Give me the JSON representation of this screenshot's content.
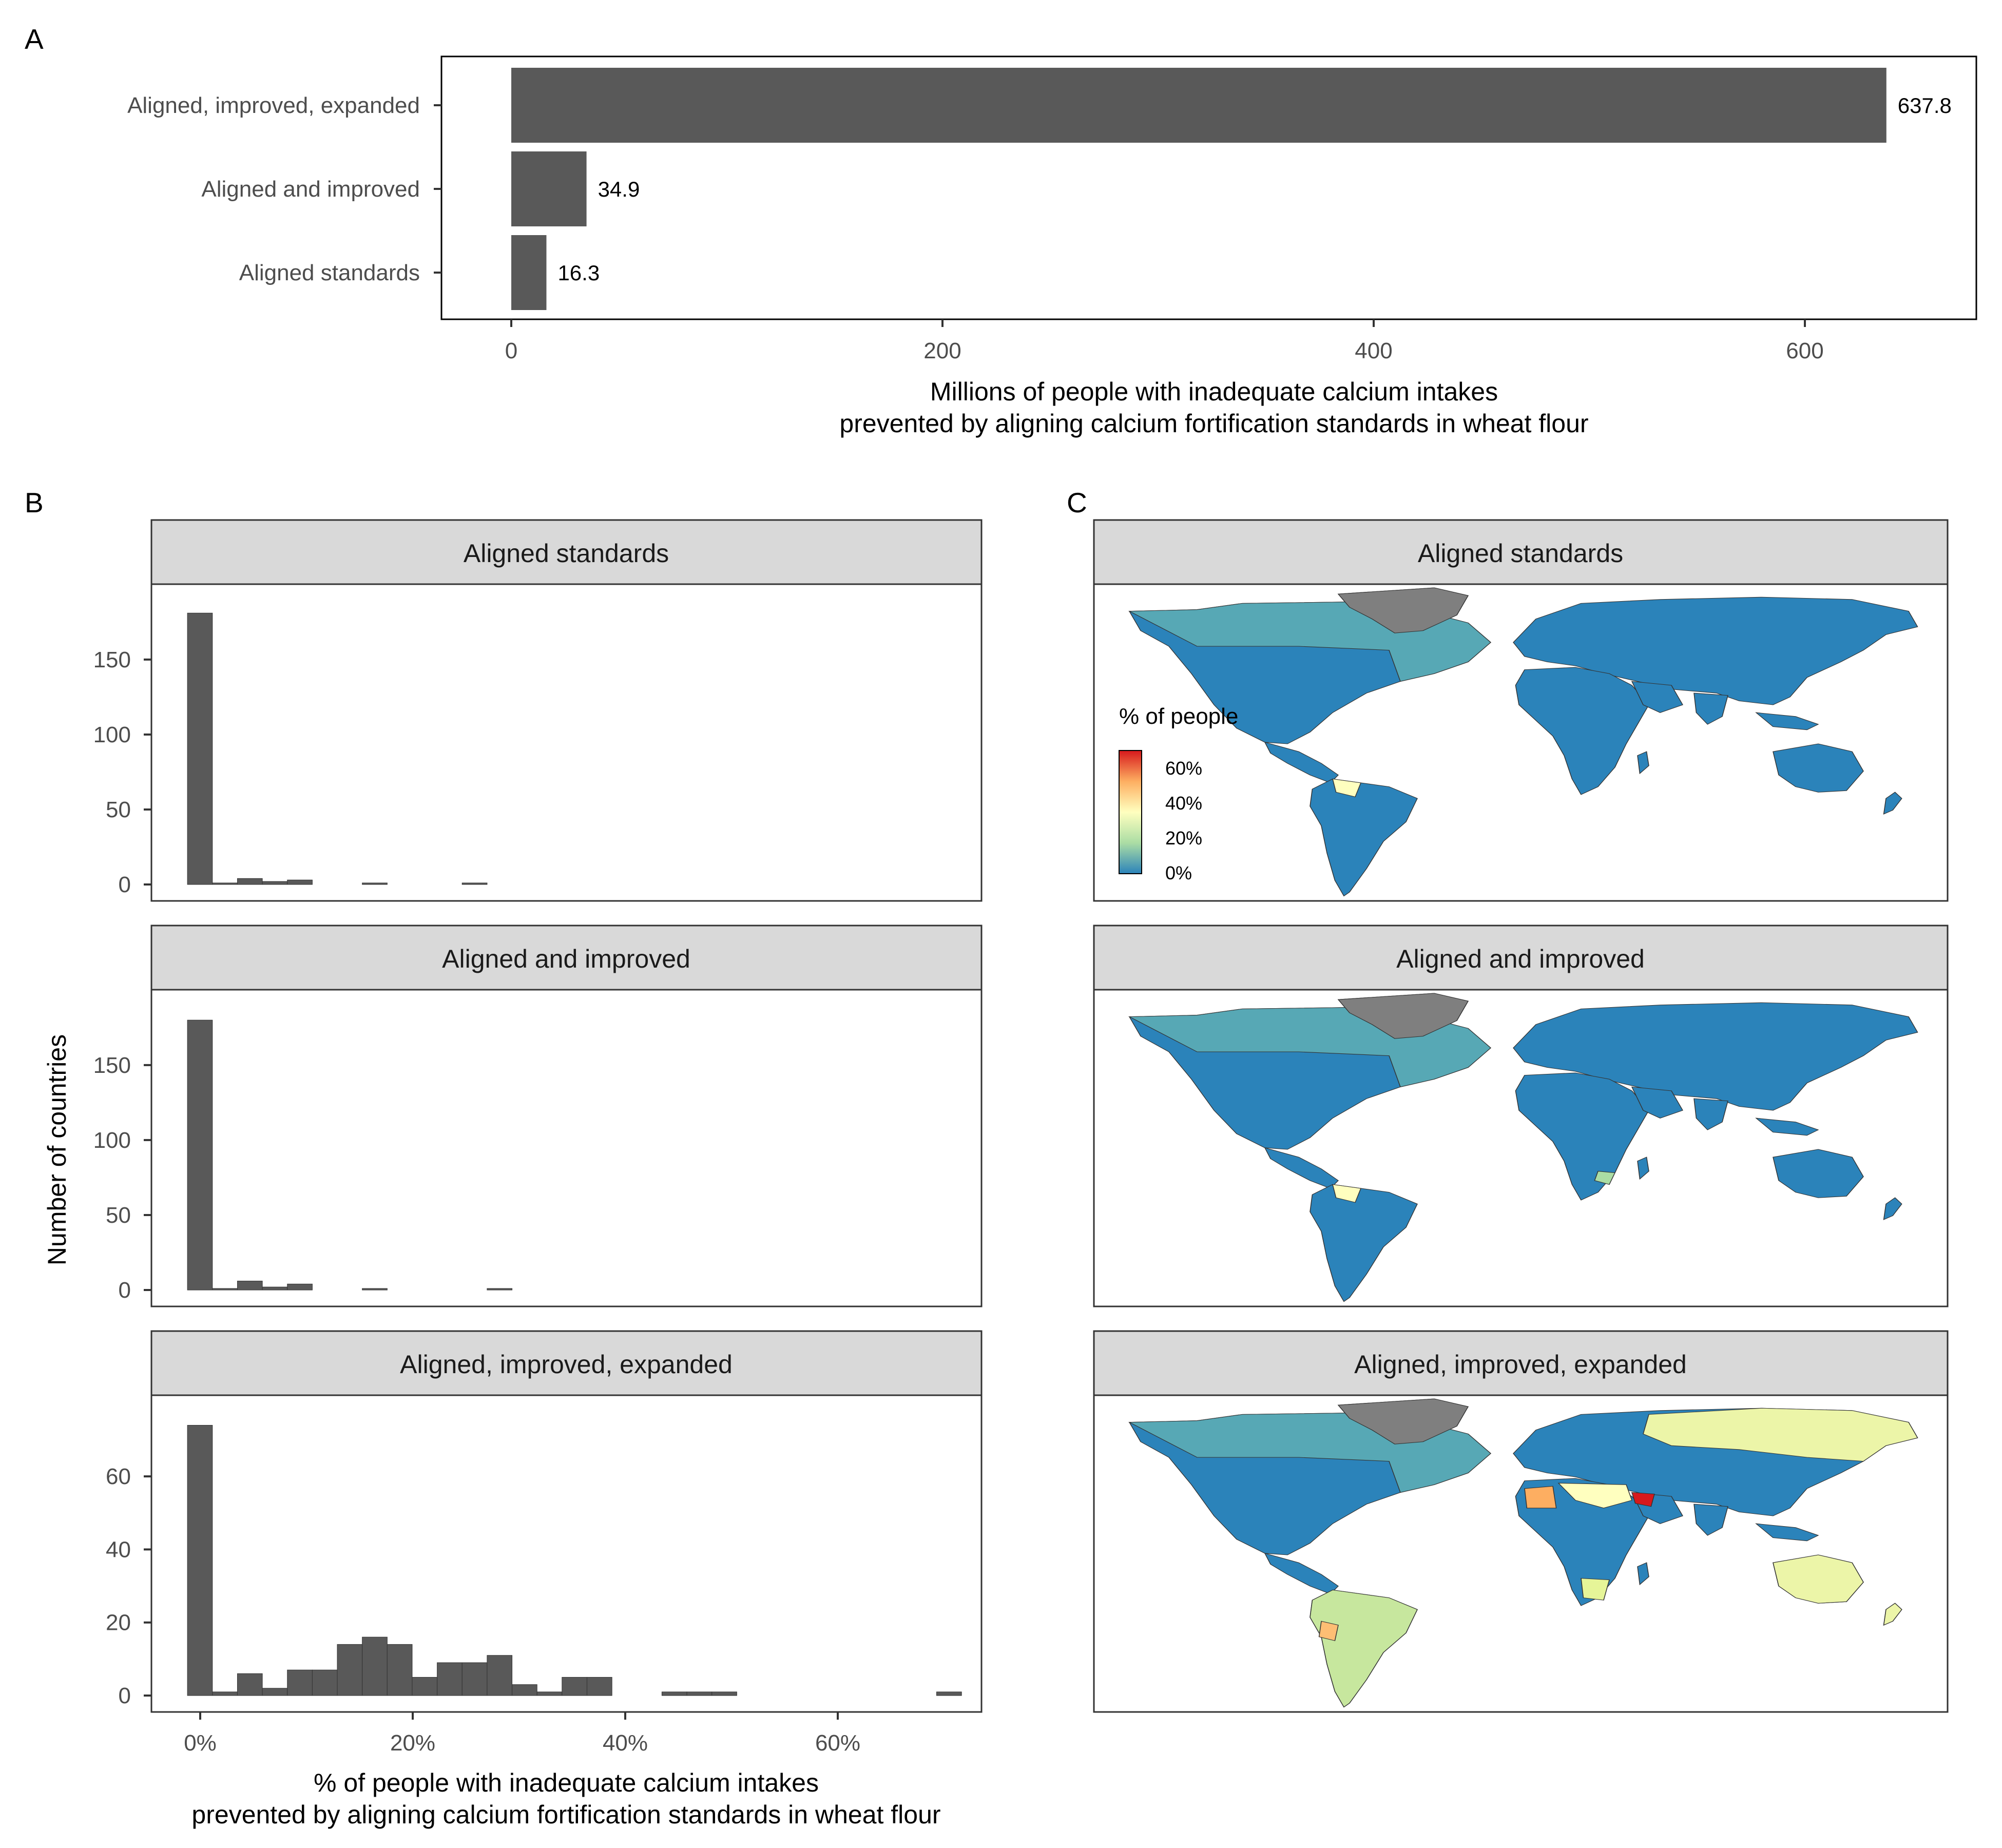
{
  "panels": {
    "a": "A",
    "b": "B",
    "c": "C"
  },
  "chart_data": [
    {
      "panel": "A",
      "type": "bar",
      "orientation": "horizontal",
      "categories": [
        "Aligned, improved, expanded",
        "Aligned and improved",
        "Aligned standards"
      ],
      "values": [
        637.8,
        34.9,
        16.3
      ],
      "value_labels": [
        "637.8",
        "34.9",
        "16.3"
      ],
      "xlabel_lines": [
        "Millions of people with inadequate calcium intakes",
        "prevented by aligning calcium fortification standards in wheat flour"
      ],
      "xticks": [
        0,
        200,
        400,
        600
      ],
      "xtick_labels": [
        "0",
        "200",
        "400",
        "600"
      ],
      "grid": false,
      "bar_color": "#595959"
    },
    {
      "panel": "B",
      "type": "bar",
      "subtype": "histogram",
      "ylabel": "Number of countries",
      "xlabel_lines": [
        "% of people with inadequate calcium intakes",
        "prevented by aligning calcium fortification standards in wheat flour"
      ],
      "xticks": [
        0,
        20,
        40,
        60
      ],
      "xtick_labels": [
        "0%",
        "20%",
        "40%",
        "60%"
      ],
      "bin_width_pct": 2.35,
      "bin_start_pct": -1.2,
      "bar_color": "#595959",
      "facets": [
        {
          "strip": "Aligned standards",
          "yticks": [
            0,
            50,
            100,
            150
          ],
          "ytick_labels": [
            "0",
            "50",
            "100",
            "150"
          ],
          "ylim": [
            0,
            190
          ],
          "counts": [
            181,
            1,
            4,
            2,
            3,
            0,
            0,
            1,
            0,
            0,
            0,
            1
          ]
        },
        {
          "strip": "Aligned and improved",
          "yticks": [
            0,
            50,
            100,
            150
          ],
          "ytick_labels": [
            "0",
            "50",
            "100",
            "150"
          ],
          "ylim": [
            0,
            190
          ],
          "counts": [
            180,
            1,
            6,
            2,
            4,
            0,
            0,
            1,
            0,
            0,
            0,
            0,
            1
          ]
        },
        {
          "strip": "Aligned, improved, expanded",
          "yticks": [
            0,
            20,
            40,
            60
          ],
          "ytick_labels": [
            "0",
            "20",
            "40",
            "60"
          ],
          "ylim": [
            0,
            78
          ],
          "counts": [
            74,
            1,
            6,
            2,
            7,
            7,
            14,
            16,
            14,
            5,
            9,
            9,
            11,
            3,
            1,
            5,
            5,
            0,
            0,
            1,
            1,
            1,
            0,
            0,
            0,
            0,
            0,
            0,
            0,
            0,
            1
          ]
        }
      ]
    },
    {
      "panel": "C",
      "type": "heatmap",
      "subtype": "choropleth world map",
      "legend_title": "% of people",
      "legend_ticks": [
        "0%",
        "20%",
        "40%",
        "60%"
      ],
      "legend_range": [
        0,
        70
      ],
      "colors": {
        "scale": [
          "#2b83ba",
          "#abdda4",
          "#ffffbf",
          "#fdae61",
          "#d7191c"
        ],
        "missing": "#7f7f7f",
        "ocean": "#ffffff",
        "border": "#333333"
      },
      "facets": [
        {
          "strip": "Aligned standards"
        },
        {
          "strip": "Aligned and improved"
        },
        {
          "strip": "Aligned, improved, expanded"
        }
      ]
    }
  ]
}
